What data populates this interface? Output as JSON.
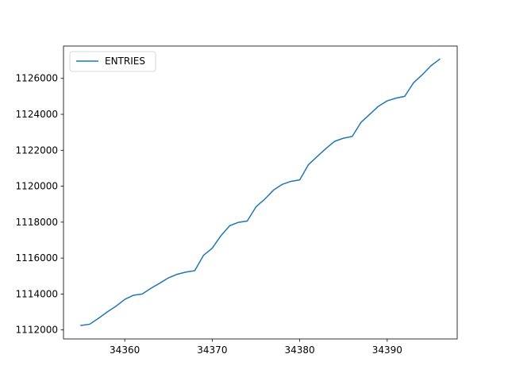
{
  "chart_data": {
    "type": "line",
    "title": "",
    "xlabel": "",
    "ylabel": "",
    "xlim": [
      34353.0,
      34398.0
    ],
    "ylim": [
      1111500,
      1127800
    ],
    "x_ticks": [
      34360,
      34370,
      34380,
      34390
    ],
    "x_tick_labels": [
      "34360",
      "34370",
      "34380",
      "34390"
    ],
    "y_ticks": [
      1112000,
      1114000,
      1116000,
      1118000,
      1120000,
      1122000,
      1124000,
      1126000
    ],
    "y_tick_labels": [
      "1112000",
      "1114000",
      "1116000",
      "1118000",
      "1120000",
      "1122000",
      "1124000",
      "1126000"
    ],
    "legend_position": "upper-left",
    "series": [
      {
        "name": "ENTRIES",
        "color": "#1f77b4",
        "x": [
          34355,
          34356,
          34357,
          34358,
          34359,
          34360,
          34361,
          34362,
          34363,
          34364,
          34365,
          34366,
          34367,
          34368,
          34369,
          34370,
          34371,
          34372,
          34373,
          34374,
          34375,
          34376,
          34377,
          34378,
          34379,
          34380,
          34381,
          34382,
          34383,
          34384,
          34385,
          34386,
          34387,
          34388,
          34389,
          34390,
          34391,
          34392,
          34393,
          34394,
          34395,
          34396
        ],
        "values": [
          1112250,
          1112320,
          1112650,
          1113000,
          1113320,
          1113700,
          1113930,
          1114000,
          1114320,
          1114600,
          1114900,
          1115100,
          1115220,
          1115300,
          1116150,
          1116550,
          1117250,
          1117800,
          1117990,
          1118060,
          1118850,
          1119280,
          1119780,
          1120100,
          1120270,
          1120350,
          1121200,
          1121650,
          1122100,
          1122500,
          1122670,
          1122770,
          1123550,
          1124000,
          1124450,
          1124750,
          1124900,
          1125000,
          1125750,
          1126200,
          1126700,
          1127070
        ]
      }
    ]
  }
}
